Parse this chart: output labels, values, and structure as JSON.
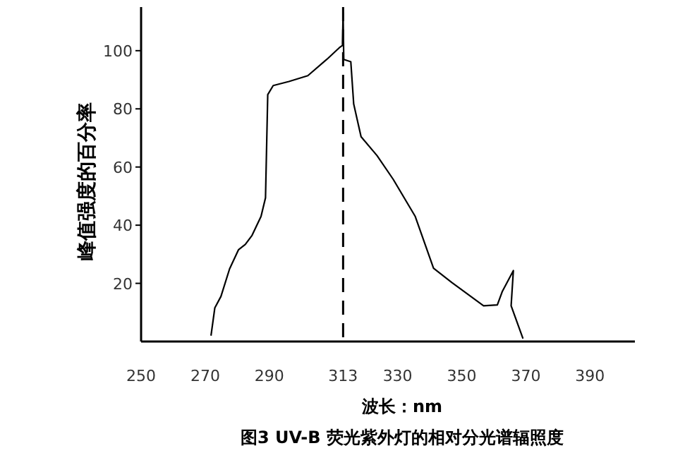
{
  "chart_data": {
    "type": "line",
    "title": "图3  UV-B 荧光紫外灯的相对分光谱辐照度",
    "xlabel": "波长：nm",
    "ylabel": "峰值强度的百分率",
    "x": [
      271.8,
      273.0,
      274.9,
      277.6,
      280.4,
      282.5,
      284.6,
      287.4,
      288.8,
      289.5,
      291.2,
      296.1,
      302.0,
      307.9,
      311.8,
      312.8,
      313,
      313.2,
      315.4,
      316.3,
      318.6,
      323.6,
      328.6,
      335.5,
      341.2,
      346.9,
      356.8,
      361.1,
      362.6,
      366.1,
      365.4,
      369.1
    ],
    "series": [
      {
        "color": "#000000",
        "values": [
          2,
          11.6,
          15.5,
          25,
          31.6,
          33.4,
          36.5,
          43,
          49.4,
          84.9,
          88,
          89.4,
          91.4,
          97,
          101,
          101.8,
          113,
          97,
          96.2,
          81.7,
          70.4,
          63.9,
          55.8,
          43,
          25.2,
          20.3,
          12.3,
          12.6,
          17.1,
          24.4,
          12.3,
          1
        ]
      }
    ],
    "xlim": [
      250,
      404
    ],
    "ylim": [
      0,
      115
    ],
    "xticks": [
      250,
      270,
      290,
      313,
      330,
      350,
      370,
      390
    ],
    "yticks": [
      20,
      40,
      60,
      80,
      100
    ],
    "ref_lines": [
      {
        "axis": "x",
        "value": 313,
        "line_style": "dashed",
        "color": "#000000"
      }
    ],
    "grid": false,
    "marker": "none",
    "line_style": "solid"
  }
}
